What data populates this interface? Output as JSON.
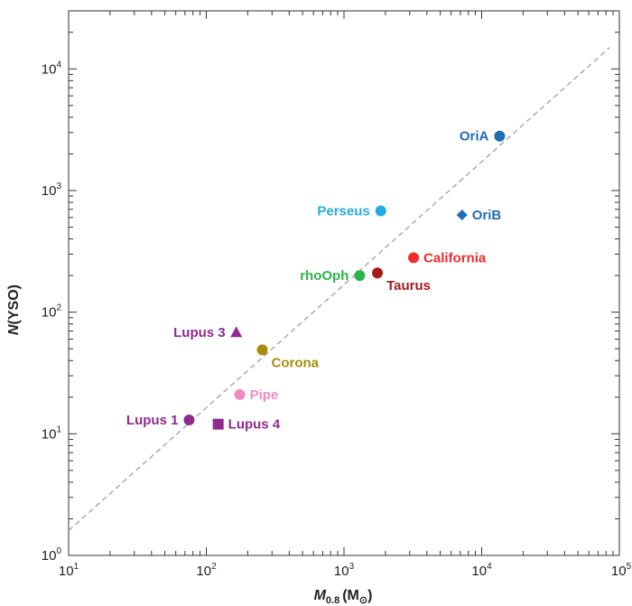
{
  "chart_data": {
    "type": "scatter",
    "xscale": "log",
    "yscale": "log",
    "xlim": [
      10,
      100000
    ],
    "ylim": [
      1,
      30000
    ],
    "xticks": [
      {
        "base": "10",
        "exp": "1"
      },
      {
        "base": "10",
        "exp": "2"
      },
      {
        "base": "10",
        "exp": "3"
      },
      {
        "base": "10",
        "exp": "4"
      },
      {
        "base": "10",
        "exp": "5"
      }
    ],
    "yticks": [
      {
        "base": "10",
        "exp": "0"
      },
      {
        "base": "10",
        "exp": "1"
      },
      {
        "base": "10",
        "exp": "2"
      },
      {
        "base": "10",
        "exp": "3"
      },
      {
        "base": "10",
        "exp": "4"
      }
    ],
    "xlabel": {
      "main": "M",
      "sub": "0.8",
      "unit": "(M",
      "unit_sub": "⊙",
      "close": ")"
    },
    "ylabel": {
      "main": "N",
      "rest": "(YSO)"
    },
    "grid": false,
    "reference_line": {
      "style": "dashed",
      "color": "#999999",
      "points": [
        [
          10,
          1.6
        ],
        [
          85000,
          15000
        ]
      ]
    },
    "points": [
      {
        "label": "OriA",
        "x": 13500,
        "y": 2800,
        "marker": "circle",
        "color": "#1f6db5",
        "label_side": "left"
      },
      {
        "label": "OriB",
        "x": 7200,
        "y": 630,
        "marker": "diamond",
        "color": "#1f6db5",
        "label_side": "right"
      },
      {
        "label": "Perseus",
        "x": 1850,
        "y": 680,
        "marker": "circle",
        "color": "#27aae1",
        "label_side": "left"
      },
      {
        "label": "California",
        "x": 3200,
        "y": 280,
        "marker": "circle",
        "color": "#ee2d2d",
        "label_side": "right"
      },
      {
        "label": "Taurus",
        "x": 1750,
        "y": 210,
        "marker": "circle",
        "color": "#a51b1b",
        "label_side": "below-right"
      },
      {
        "label": "rhoOph",
        "x": 1300,
        "y": 200,
        "marker": "circle",
        "color": "#2db34a",
        "label_side": "left"
      },
      {
        "label": "Lupus 3",
        "x": 165,
        "y": 68,
        "marker": "triangle",
        "color": "#8e2b8e",
        "label_side": "left"
      },
      {
        "label": "Corona",
        "x": 255,
        "y": 49,
        "marker": "circle",
        "color": "#a88c10",
        "label_side": "below-right"
      },
      {
        "label": "Pipe",
        "x": 175,
        "y": 21,
        "marker": "circle",
        "color": "#ef8bbd",
        "label_side": "right"
      },
      {
        "label": "Lupus 1",
        "x": 75,
        "y": 13,
        "marker": "circle",
        "color": "#8e2b8e",
        "label_side": "left"
      },
      {
        "label": "Lupus 4",
        "x": 122,
        "y": 12,
        "marker": "square",
        "color": "#8e2b8e",
        "label_side": "right"
      }
    ]
  }
}
